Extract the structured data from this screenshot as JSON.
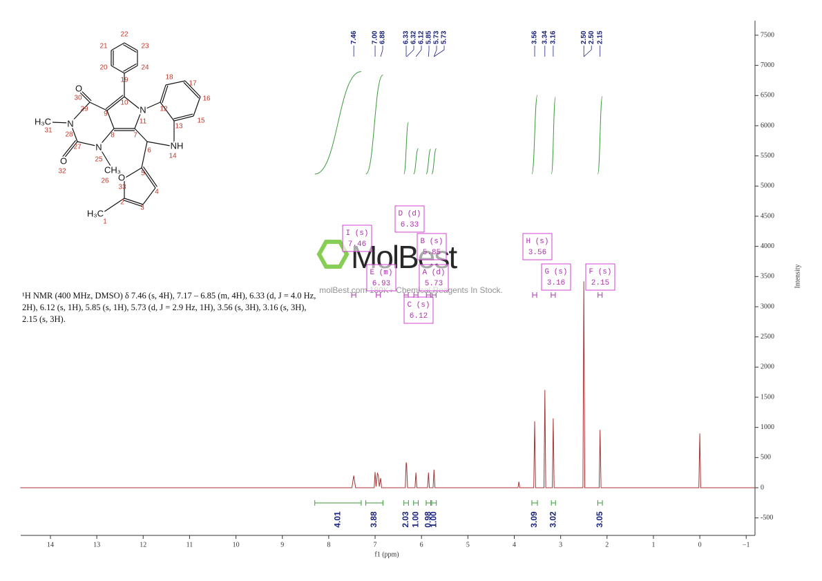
{
  "chart_data": {
    "type": "nmr",
    "x_label": "f1 (ppm)",
    "y_label": "Intensity",
    "xlim": [
      14.64,
      -1.19
    ],
    "xticks": [
      14,
      13,
      12,
      11,
      10,
      9,
      8,
      7,
      6,
      5,
      4,
      3,
      2,
      1,
      0,
      {
        "value": -1,
        "label": "−1"
      }
    ],
    "ylim": [
      -790,
      7740
    ],
    "yticks": [
      -500,
      0,
      500,
      1000,
      1500,
      2000,
      2500,
      3000,
      3500,
      4000,
      4500,
      5000,
      5500,
      6000,
      6500,
      7000,
      7500
    ],
    "series": [
      {
        "color": "#a83232",
        "x": [
          14.65,
          7.5,
          7.46,
          7.42,
          7.02,
          7.0,
          6.98,
          6.95,
          6.93,
          6.91,
          6.88,
          6.86,
          6.35,
          6.33,
          6.32,
          6.3,
          6.14,
          6.12,
          6.1,
          5.87,
          5.85,
          5.83,
          5.75,
          5.73,
          5.71,
          3.92,
          3.9,
          3.88,
          3.58,
          3.56,
          3.54,
          3.36,
          3.34,
          3.32,
          3.18,
          3.16,
          3.14,
          2.52,
          2.5,
          2.48,
          2.17,
          2.15,
          2.13,
          0.02,
          0,
          -0.02,
          -1.2
        ],
        "values": [
          0,
          0,
          200,
          0,
          0,
          260,
          20,
          240,
          210,
          20,
          160,
          0,
          0,
          420,
          380,
          0,
          0,
          250,
          0,
          0,
          250,
          0,
          0,
          300,
          0,
          0,
          100,
          0,
          0,
          1100,
          0,
          0,
          1620,
          0,
          0,
          1150,
          0,
          0,
          3420,
          0,
          0,
          960,
          0,
          0,
          900,
          0,
          0
        ]
      }
    ],
    "peak_labels": [
      "7.46",
      "7.00",
      "6.88",
      "6.33",
      "6.32",
      "6.12",
      "5.85",
      "5.73",
      "5.73",
      "3.56",
      "3.34",
      "3.16",
      "2.50",
      "2.50",
      "2.15"
    ],
    "integrals": [
      {
        "from": 8.3,
        "to": 7.3,
        "label": "4.01"
      },
      {
        "from": 7.2,
        "to": 6.83,
        "label": "3.88"
      },
      {
        "from": 6.38,
        "to": 6.28,
        "label": "2.03"
      },
      {
        "from": 6.17,
        "to": 6.07,
        "label": "1.00"
      },
      {
        "from": 5.9,
        "to": 5.8,
        "label": "0.98"
      },
      {
        "from": 5.78,
        "to": 5.68,
        "label": "1.00"
      },
      {
        "from": 3.62,
        "to": 3.5,
        "label": "3.09"
      },
      {
        "from": 3.2,
        "to": 3.11,
        "label": "3.02"
      },
      {
        "from": 2.2,
        "to": 2.1,
        "label": "3.05"
      }
    ],
    "multiplets": [
      {
        "name": "I (s)",
        "shift": "7.46"
      },
      {
        "name": "E (m)",
        "shift": "6.93"
      },
      {
        "name": "D (d)",
        "shift": "6.33"
      },
      {
        "name": "C (s)",
        "shift": "6.12"
      },
      {
        "name": "B (s)",
        "shift": "5.85"
      },
      {
        "name": "A (d)",
        "shift": "5.73"
      },
      {
        "name": "H (s)",
        "shift": "3.56"
      },
      {
        "name": "G (s)",
        "shift": "3.16"
      },
      {
        "name": "F (s)",
        "shift": "2.15"
      }
    ]
  },
  "description": "¹H NMR (400 MHz, DMSO) δ 7.46 (s, 4H), 7.17 – 6.85 (m, 4H), 6.33 (d, J = 4.0 Hz, 2H), 6.12 (s, 1H), 5.85 (s, 1H), 5.73 (d, J = 2.9 Hz, 1H), 3.56 (s, 3H), 3.16 (s, 3H), 2.15 (s, 3H).",
  "watermark": {
    "brand": "MolBest",
    "tagline": "molBest.com 180K+ Chemical Reagents In Stock."
  },
  "molecule": {
    "atoms": [
      "O",
      "H₃C",
      "N",
      "N",
      "O",
      "CH₃",
      "N",
      "NH",
      "O",
      "H₃C"
    ],
    "numbers": [
      "22",
      "21",
      "23",
      "20",
      "24",
      "19",
      "10",
      "18",
      "17",
      "16",
      "15",
      "12",
      "13",
      "11",
      "9",
      "7",
      "8",
      "30",
      "29",
      "31",
      "28",
      "27",
      "32",
      "25",
      "26",
      "6",
      "14",
      "5",
      "33",
      "4",
      "3",
      "2",
      "1"
    ]
  }
}
